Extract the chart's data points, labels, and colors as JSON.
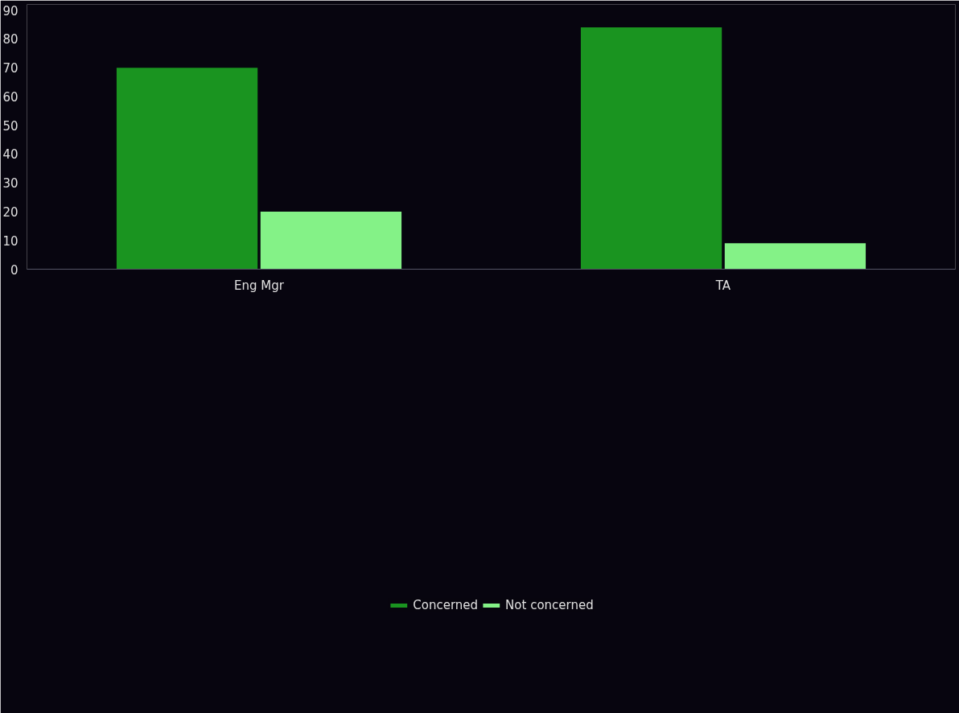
{
  "chart_data": {
    "type": "bar",
    "categories": [
      "Eng Mgr",
      "TA"
    ],
    "series": [
      {
        "name": "Concerned",
        "color": "#1a9420",
        "values": [
          70,
          84
        ]
      },
      {
        "name": "Not concerned",
        "color": "#84f287",
        "values": [
          20,
          9
        ]
      }
    ],
    "ylim": [
      0,
      92
    ],
    "yticks": [
      0,
      10,
      20,
      30,
      40,
      50,
      60,
      70,
      80,
      90
    ],
    "grid": false,
    "legend": "bottom"
  }
}
